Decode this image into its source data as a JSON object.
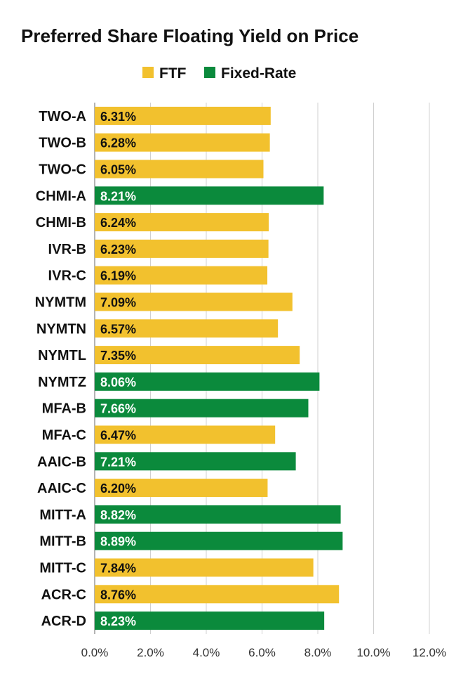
{
  "colors": {
    "FTF": "#f2c12e",
    "Fixed-Rate": "#0b8a3c",
    "label_on_ftf": "#111111",
    "label_on_fixed": "#ffffff"
  },
  "chart_data": {
    "type": "bar",
    "orientation": "horizontal",
    "title": "Preferred Share Floating Yield on Price",
    "legend": [
      "FTF",
      "Fixed-Rate"
    ],
    "legend_position": "top",
    "xlim": [
      0,
      12
    ],
    "xticks": [
      0,
      2,
      4,
      6,
      8,
      10,
      12
    ],
    "xtick_labels": [
      "0.0%",
      "2.0%",
      "4.0%",
      "6.0%",
      "8.0%",
      "10.0%",
      "12.0%"
    ],
    "grid": true,
    "categories": [
      "TWO-A",
      "TWO-B",
      "TWO-C",
      "CHMI-A",
      "CHMI-B",
      "IVR-B",
      "IVR-C",
      "NYMTM",
      "NYMTN",
      "NYMTL",
      "NYMTZ",
      "MFA-B",
      "MFA-C",
      "AAIC-B",
      "AAIC-C",
      "MITT-A",
      "MITT-B",
      "MITT-C",
      "ACR-C",
      "ACR-D"
    ],
    "values": [
      6.31,
      6.28,
      6.05,
      8.21,
      6.24,
      6.23,
      6.19,
      7.09,
      6.57,
      7.35,
      8.06,
      7.66,
      6.47,
      7.21,
      6.2,
      8.82,
      8.89,
      7.84,
      8.76,
      8.23
    ],
    "value_labels": [
      "6.31%",
      "6.28%",
      "6.05%",
      "8.21%",
      "6.24%",
      "6.23%",
      "6.19%",
      "7.09%",
      "6.57%",
      "7.35%",
      "8.06%",
      "7.66%",
      "6.47%",
      "7.21%",
      "6.20%",
      "8.82%",
      "8.89%",
      "7.84%",
      "8.76%",
      "8.23%"
    ],
    "series_type": [
      "FTF",
      "FTF",
      "FTF",
      "Fixed-Rate",
      "FTF",
      "FTF",
      "FTF",
      "FTF",
      "FTF",
      "FTF",
      "Fixed-Rate",
      "Fixed-Rate",
      "FTF",
      "Fixed-Rate",
      "FTF",
      "Fixed-Rate",
      "Fixed-Rate",
      "FTF",
      "FTF",
      "Fixed-Rate"
    ]
  }
}
